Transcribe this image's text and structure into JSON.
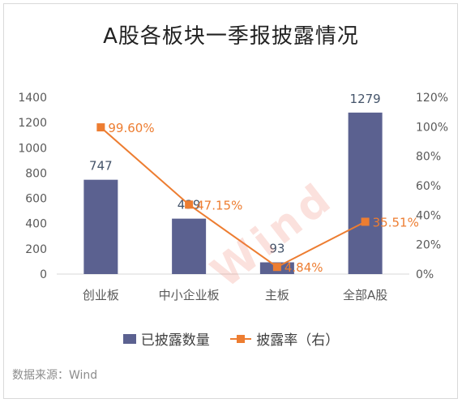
{
  "chart_data": {
    "type": "bar",
    "title": "A股各板块一季报披露情况",
    "categories": [
      "创业板",
      "中小企业板",
      "主板",
      "全部A股"
    ],
    "series": [
      {
        "name": "已披露数量",
        "type": "bar",
        "axis": "left",
        "values": [
          747,
          439,
          93,
          1279
        ],
        "labels": [
          "747",
          "439",
          "93",
          "1279"
        ]
      },
      {
        "name": "披露率（右）",
        "type": "line",
        "axis": "right",
        "values": [
          99.6,
          47.15,
          4.84,
          35.51
        ],
        "labels": [
          "99.60%",
          "47.15%",
          "4.84%",
          "35.51%"
        ]
      }
    ],
    "y_left": {
      "range": [
        0,
        1400
      ],
      "ticks": [
        "0",
        "200",
        "400",
        "600",
        "800",
        "1000",
        "1200",
        "1400"
      ]
    },
    "y_right": {
      "range": [
        0,
        120
      ],
      "ticks": [
        "0%",
        "20%",
        "40%",
        "60%",
        "80%",
        "100%",
        "120%"
      ]
    },
    "grid": false,
    "legend": "bottom",
    "colors": {
      "bar": "#5b6190",
      "line": "#ed7d31"
    }
  },
  "source": "数据来源：Wind",
  "watermark": "Wind"
}
